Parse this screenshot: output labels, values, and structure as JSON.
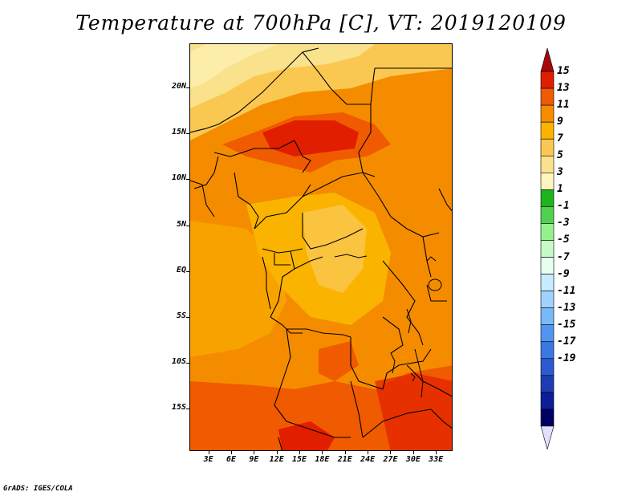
{
  "title": "Temperature at 700hPa [C], VT: 2019120109",
  "credit": "GrADS: IGES/COLA",
  "lat_labels": [
    {
      "text": "20N",
      "lat": 20
    },
    {
      "text": "15N",
      "lat": 15
    },
    {
      "text": "10N",
      "lat": 10
    },
    {
      "text": "5N",
      "lat": 5
    },
    {
      "text": "EQ",
      "lat": 0
    },
    {
      "text": "5S",
      "lat": -5
    },
    {
      "text": "10S",
      "lat": -10
    },
    {
      "text": "15S",
      "lat": -15
    }
  ],
  "lon_labels": [
    {
      "text": "3E",
      "lon": 3
    },
    {
      "text": "6E",
      "lon": 6
    },
    {
      "text": "9E",
      "lon": 9
    },
    {
      "text": "12E",
      "lon": 12
    },
    {
      "text": "15E",
      "lon": 15
    },
    {
      "text": "18E",
      "lon": 18
    },
    {
      "text": "21E",
      "lon": 21
    },
    {
      "text": "24E",
      "lon": 24
    },
    {
      "text": "27E",
      "lon": 27
    },
    {
      "text": "30E",
      "lon": 30
    },
    {
      "text": "33E",
      "lon": 33
    }
  ],
  "colorbar": {
    "labels": [
      "15",
      "13",
      "11",
      "9",
      "7",
      "5",
      "3",
      "1",
      "-1",
      "-3",
      "-5",
      "-7",
      "-9",
      "-11",
      "-13",
      "-15",
      "-17",
      "-19"
    ],
    "colors": [
      "#a50a0a",
      "#e11e00",
      "#f05a00",
      "#f58c00",
      "#fab400",
      "#fac850",
      "#fae18c",
      "#fff5be",
      "#1eb41e",
      "#50d250",
      "#96f08c",
      "#c8fac8",
      "#e6fff0",
      "#c8ebff",
      "#a0d2ff",
      "#78b9fa",
      "#5096f0",
      "#3c78e1",
      "#2d5ad2",
      "#1e3cb4",
      "#0f1e96",
      "#000064",
      "#e1e1ff"
    ]
  }
}
